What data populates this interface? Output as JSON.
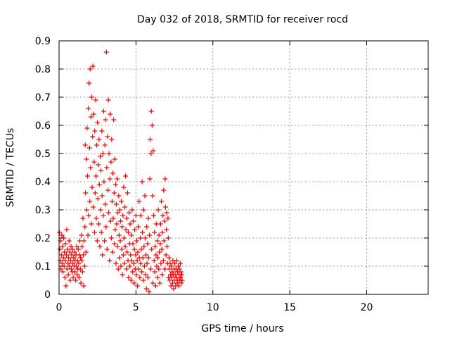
{
  "chart_data": {
    "type": "scatter",
    "title": "Day 032 of 2018, SRMTID for receiver rocd",
    "xlabel": "GPS time / hours",
    "ylabel": "SRMTID / TECUs",
    "xlim": [
      0,
      24
    ],
    "ylim": [
      0,
      0.9
    ],
    "xticks": [
      0,
      5,
      10,
      15,
      20
    ],
    "yticks": [
      0,
      0.1,
      0.2,
      0.3,
      0.4,
      0.5,
      0.6,
      0.7,
      0.8,
      0.9
    ],
    "xtick_labels": [
      "0",
      "5",
      "10",
      "15",
      "20"
    ],
    "ytick_labels": [
      "0",
      "0.1",
      "0.2",
      "0.3",
      "0.4",
      "0.5",
      "0.6",
      "0.7",
      "0.8",
      "0.9"
    ],
    "grid": true,
    "marker": "+",
    "color": "#ff0000",
    "series": [
      {
        "points": [
          [
            0.02,
            0.22
          ],
          [
            0.05,
            0.16
          ],
          [
            0.08,
            0.12
          ],
          [
            0.1,
            0.19
          ],
          [
            0.12,
            0.09
          ],
          [
            0.15,
            0.14
          ],
          [
            0.18,
            0.21
          ],
          [
            0.2,
            0.11
          ],
          [
            0.22,
            0.17
          ],
          [
            0.25,
            0.08
          ],
          [
            0.28,
            0.13
          ],
          [
            0.3,
            0.2
          ],
          [
            0.33,
            0.1
          ],
          [
            0.35,
            0.15
          ],
          [
            0.38,
            0.06
          ],
          [
            0.4,
            0.12
          ],
          [
            0.42,
            0.18
          ],
          [
            0.45,
            0.03
          ],
          [
            0.48,
            0.14
          ],
          [
            0.5,
            0.23
          ],
          [
            0.52,
            0.09
          ],
          [
            0.55,
            0.16
          ],
          [
            0.58,
            0.11
          ],
          [
            0.6,
            0.07
          ],
          [
            0.62,
            0.13
          ],
          [
            0.65,
            0.19
          ],
          [
            0.68,
            0.1
          ],
          [
            0.7,
            0.15
          ],
          [
            0.72,
            0.05
          ],
          [
            0.75,
            0.12
          ],
          [
            0.78,
            0.17
          ],
          [
            0.8,
            0.09
          ],
          [
            0.82,
            0.14
          ],
          [
            0.85,
            0.08
          ],
          [
            0.88,
            0.16
          ],
          [
            0.9,
            0.11
          ],
          [
            0.92,
            0.06
          ],
          [
            0.95,
            0.13
          ],
          [
            0.98,
            0.1
          ],
          [
            1.0,
            0.15
          ],
          [
            1.02,
            0.08
          ],
          [
            1.05,
            0.12
          ],
          [
            1.08,
            0.05
          ],
          [
            1.1,
            0.14
          ],
          [
            1.12,
            0.1
          ],
          [
            1.15,
            0.17
          ],
          [
            1.18,
            0.07
          ],
          [
            1.2,
            0.12
          ],
          [
            1.22,
            0.09
          ],
          [
            1.25,
            0.16
          ],
          [
            1.28,
            0.11
          ],
          [
            1.3,
            0.06
          ],
          [
            1.32,
            0.14
          ],
          [
            1.35,
            0.19
          ],
          [
            1.38,
            0.09
          ],
          [
            1.4,
            0.13
          ],
          [
            1.42,
            0.04
          ],
          [
            1.45,
            0.21
          ],
          [
            1.48,
            0.12
          ],
          [
            1.5,
            0.17
          ],
          [
            1.52,
            0.08
          ],
          [
            1.55,
            0.27
          ],
          [
            1.58,
            0.14
          ],
          [
            1.6,
            0.03
          ],
          [
            1.62,
            0.19
          ],
          [
            1.65,
            0.1
          ],
          [
            1.68,
            0.24
          ],
          [
            1.7,
            0.53
          ],
          [
            1.72,
            0.36
          ],
          [
            1.75,
            0.15
          ],
          [
            1.78,
            0.48
          ],
          [
            1.8,
            0.3
          ],
          [
            1.82,
            0.59
          ],
          [
            1.85,
            0.42
          ],
          [
            1.88,
            0.21
          ],
          [
            1.9,
            0.66
          ],
          [
            1.92,
            0.28
          ],
          [
            1.95,
            0.75
          ],
          [
            1.98,
            0.52
          ],
          [
            2.0,
            0.33
          ],
          [
            2.02,
            0.8
          ],
          [
            2.05,
            0.45
          ],
          [
            2.08,
            0.63
          ],
          [
            2.1,
            0.25
          ],
          [
            2.12,
            0.7
          ],
          [
            2.15,
            0.38
          ],
          [
            2.18,
            0.56
          ],
          [
            2.2,
            0.81
          ],
          [
            2.22,
            0.31
          ],
          [
            2.25,
            0.64
          ],
          [
            2.28,
            0.47
          ],
          [
            2.3,
            0.22
          ],
          [
            2.32,
            0.58
          ],
          [
            2.35,
            0.36
          ],
          [
            2.38,
            0.69
          ],
          [
            2.4,
            0.42
          ],
          [
            2.42,
            0.27
          ],
          [
            2.45,
            0.53
          ],
          [
            2.48,
            0.19
          ],
          [
            2.5,
            0.61
          ],
          [
            2.52,
            0.34
          ],
          [
            2.55,
            0.46
          ],
          [
            2.58,
            0.25
          ],
          [
            2.6,
            0.55
          ],
          [
            2.62,
            0.39
          ],
          [
            2.65,
            0.17
          ],
          [
            2.68,
            0.49
          ],
          [
            2.7,
            0.3
          ],
          [
            2.72,
            0.44
          ],
          [
            2.75,
            0.22
          ],
          [
            2.78,
            0.58
          ],
          [
            2.8,
            0.35
          ],
          [
            2.82,
            0.14
          ],
          [
            2.85,
            0.5
          ],
          [
            2.88,
            0.28
          ],
          [
            2.9,
            0.65
          ],
          [
            2.92,
            0.4
          ],
          [
            2.95,
            0.19
          ],
          [
            2.98,
            0.53
          ],
          [
            3.0,
            0.32
          ],
          [
            3.02,
            0.62
          ],
          [
            3.05,
            0.24
          ],
          [
            3.08,
            0.86
          ],
          [
            3.1,
            0.45
          ],
          [
            3.12,
            0.16
          ],
          [
            3.15,
            0.56
          ],
          [
            3.18,
            0.37
          ],
          [
            3.2,
            0.69
          ],
          [
            3.22,
            0.29
          ],
          [
            3.25,
            0.5
          ],
          [
            3.28,
            0.12
          ],
          [
            3.3,
            0.41
          ],
          [
            3.32,
            0.64
          ],
          [
            3.35,
            0.26
          ],
          [
            3.38,
            0.47
          ],
          [
            3.4,
            0.2
          ],
          [
            3.42,
            0.55
          ],
          [
            3.45,
            0.33
          ],
          [
            3.48,
            0.15
          ],
          [
            3.5,
            0.43
          ],
          [
            3.52,
            0.27
          ],
          [
            3.55,
            0.62
          ],
          [
            3.58,
            0.36
          ],
          [
            3.6,
            0.18
          ],
          [
            3.62,
            0.48
          ],
          [
            3.65,
            0.23
          ],
          [
            3.68,
            0.39
          ],
          [
            3.7,
            0.11
          ],
          [
            3.72,
            0.32
          ],
          [
            3.75,
            0.25
          ],
          [
            3.78,
            0.41
          ],
          [
            3.8,
            0.17
          ],
          [
            3.82,
            0.29
          ],
          [
            3.85,
            0.09
          ],
          [
            3.88,
            0.35
          ],
          [
            3.9,
            0.21
          ],
          [
            3.92,
            0.13
          ],
          [
            3.95,
            0.3
          ],
          [
            3.98,
            0.19
          ],
          [
            4.0,
            0.26
          ],
          [
            4.02,
            0.1
          ],
          [
            4.05,
            0.33
          ],
          [
            4.08,
            0.16
          ],
          [
            4.1,
            0.24
          ],
          [
            4.12,
            0.07
          ],
          [
            4.15,
            0.28
          ],
          [
            4.18,
            0.14
          ],
          [
            4.2,
            0.38
          ],
          [
            4.22,
            0.2
          ],
          [
            4.25,
            0.11
          ],
          [
            4.28,
            0.31
          ],
          [
            4.3,
            0.17
          ],
          [
            4.32,
            0.42
          ],
          [
            4.35,
            0.23
          ],
          [
            4.38,
            0.09
          ],
          [
            4.4,
            0.27
          ],
          [
            4.42,
            0.15
          ],
          [
            4.45,
            0.36
          ],
          [
            4.48,
            0.12
          ],
          [
            4.5,
            0.22
          ],
          [
            4.52,
            0.06
          ],
          [
            4.55,
            0.29
          ],
          [
            4.58,
            0.18
          ],
          [
            4.6,
            0.1
          ],
          [
            4.62,
            0.25
          ],
          [
            4.65,
            0.14
          ],
          [
            4.68,
            0.05
          ],
          [
            4.7,
            0.21
          ],
          [
            4.72,
            0.12
          ],
          [
            4.75,
            0.3
          ],
          [
            4.78,
            0.08
          ],
          [
            4.8,
            0.18
          ],
          [
            4.82,
            0.26
          ],
          [
            4.85,
            0.11
          ],
          [
            4.88,
            0.04
          ],
          [
            4.9,
            0.16
          ],
          [
            4.92,
            0.23
          ],
          [
            4.95,
            0.09
          ],
          [
            4.98,
            0.14
          ],
          [
            5.0,
            0.28
          ],
          [
            5.02,
            0.07
          ],
          [
            5.05,
            0.19
          ],
          [
            5.08,
            0.12
          ],
          [
            5.1,
            0.03
          ],
          [
            5.12,
            0.15
          ],
          [
            5.15,
            0.24
          ],
          [
            5.18,
            0.09
          ],
          [
            5.2,
            0.33
          ],
          [
            5.22,
            0.13
          ],
          [
            5.25,
            0.06
          ],
          [
            5.28,
            0.2
          ],
          [
            5.3,
            0.11
          ],
          [
            5.32,
            0.28
          ],
          [
            5.35,
            0.16
          ],
          [
            5.38,
            0.08
          ],
          [
            5.4,
            0.4
          ],
          [
            5.42,
            0.22
          ],
          [
            5.45,
            0.13
          ],
          [
            5.48,
            0.05
          ],
          [
            5.5,
            0.3
          ],
          [
            5.52,
            0.17
          ],
          [
            5.55,
            0.1
          ],
          [
            5.58,
            0.35
          ],
          [
            5.6,
            0.2
          ],
          [
            5.62,
            0.07
          ],
          [
            5.65,
            0.14
          ],
          [
            5.68,
            0.02
          ],
          [
            5.7,
            0.24
          ],
          [
            5.72,
            0.11
          ],
          [
            5.75,
            0.18
          ],
          [
            5.78,
            0.06
          ],
          [
            5.8,
            0.27
          ],
          [
            5.82,
            0.13
          ],
          [
            5.85,
            0.01
          ],
          [
            5.88,
            0.21
          ],
          [
            5.9,
            0.41
          ],
          [
            5.92,
            0.55
          ],
          [
            5.95,
            0.09
          ],
          [
            5.98,
            0.5
          ],
          [
            6.0,
            0.65
          ],
          [
            6.02,
            0.16
          ],
          [
            6.05,
            0.6
          ],
          [
            6.08,
            0.35
          ],
          [
            6.1,
            0.04
          ],
          [
            6.12,
            0.51
          ],
          [
            6.15,
            0.28
          ],
          [
            6.18,
            0.12
          ],
          [
            6.2,
            0.22
          ],
          [
            6.22,
            0.08
          ],
          [
            6.25,
            0.17
          ],
          [
            6.28,
            0.03
          ],
          [
            6.3,
            0.14
          ],
          [
            6.32,
            0.25
          ],
          [
            6.35,
            0.1
          ],
          [
            6.38,
            0.19
          ],
          [
            6.4,
            0.06
          ],
          [
            6.42,
            0.13
          ],
          [
            6.45,
            0.3
          ],
          [
            6.48,
            0.09
          ],
          [
            6.5,
            0.21
          ],
          [
            6.52,
            0.15
          ],
          [
            6.55,
            0.04
          ],
          [
            6.58,
            0.18
          ],
          [
            6.6,
            0.25
          ],
          [
            6.62,
            0.11
          ],
          [
            6.65,
            0.33
          ],
          [
            6.68,
            0.16
          ],
          [
            6.7,
            0.07
          ],
          [
            6.72,
            0.22
          ],
          [
            6.75,
            0.28
          ],
          [
            6.78,
            0.12
          ],
          [
            6.8,
            0.37
          ],
          [
            6.82,
            0.19
          ],
          [
            6.85,
            0.26
          ],
          [
            6.88,
            0.09
          ],
          [
            6.9,
            0.41
          ],
          [
            6.92,
            0.31
          ],
          [
            6.95,
            0.14
          ],
          [
            6.98,
            0.23
          ],
          [
            7.0,
            0.29
          ],
          [
            7.02,
            0.17
          ],
          [
            7.05,
            0.11
          ],
          [
            7.08,
            0.27
          ],
          [
            7.1,
            0.2
          ],
          [
            7.12,
            0.06
          ],
          [
            7.15,
            0.13
          ],
          [
            7.18,
            0.09
          ],
          [
            7.2,
            0.05
          ],
          [
            7.22,
            0.11
          ],
          [
            7.25,
            0.07
          ],
          [
            7.28,
            0.03
          ],
          [
            7.3,
            0.1
          ],
          [
            7.32,
            0.06
          ],
          [
            7.35,
            0.08
          ],
          [
            7.38,
            0.04
          ],
          [
            7.4,
            0.12
          ],
          [
            7.42,
            0.07
          ],
          [
            7.45,
            0.02
          ],
          [
            7.48,
            0.09
          ],
          [
            7.5,
            0.05
          ],
          [
            7.52,
            0.11
          ],
          [
            7.55,
            0.07
          ],
          [
            7.58,
            0.03
          ],
          [
            7.6,
            0.09
          ],
          [
            7.62,
            0.06
          ],
          [
            7.65,
            0.12
          ],
          [
            7.68,
            0.04
          ],
          [
            7.7,
            0.08
          ],
          [
            7.72,
            0.05
          ],
          [
            7.75,
            0.1
          ],
          [
            7.78,
            0.03
          ],
          [
            7.8,
            0.07
          ],
          [
            7.82,
            0.09
          ],
          [
            7.85,
            0.05
          ],
          [
            7.88,
            0.11
          ],
          [
            7.9,
            0.06
          ],
          [
            7.92,
            0.08
          ],
          [
            7.95,
            0.04
          ],
          [
            7.98,
            0.07
          ],
          [
            8.0,
            0.05
          ]
        ]
      }
    ]
  }
}
